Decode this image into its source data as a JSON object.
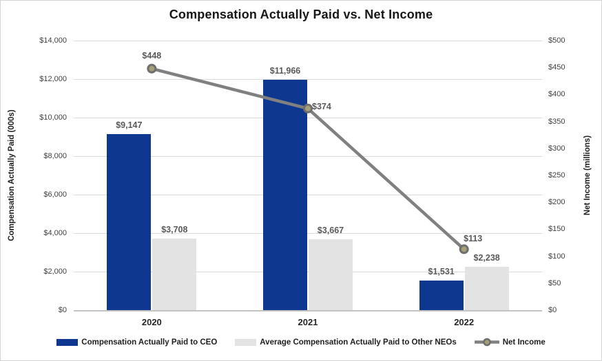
{
  "chart_data": {
    "type": "bar-line-combo",
    "title": "Compensation Actually Paid vs. Net Income",
    "categories": [
      "2020",
      "2021",
      "2022"
    ],
    "bar_series": [
      {
        "name": "Compensation Actually Paid to CEO",
        "color": "#0E3890",
        "values": [
          9147,
          11966,
          1531
        ],
        "labels": [
          "$9,147",
          "$11,966",
          "$1,531"
        ]
      },
      {
        "name": "Average Compensation Actually Paid to Other NEOs",
        "color": "#E3E3E3",
        "values": [
          3708,
          3667,
          2238
        ],
        "labels": [
          "$3,708",
          "$3,667",
          "$2,238"
        ]
      }
    ],
    "line_series": {
      "name": "Net Income",
      "color": "#808080",
      "marker_fill": "#A5A077",
      "marker_stroke": "#6E6E6E",
      "values": [
        448,
        374,
        113
      ],
      "labels": [
        "$448",
        "$374",
        "$113"
      ],
      "label_pos": [
        "above",
        "right",
        "above-right"
      ]
    },
    "axes": {
      "left": {
        "label": "Compensation Actually Paid (000s)",
        "min": 0,
        "max": 14000,
        "step": 2000,
        "ticks": [
          "$0",
          "$2,000",
          "$4,000",
          "$6,000",
          "$8,000",
          "$10,000",
          "$12,000",
          "$14,000"
        ]
      },
      "right": {
        "label": "Net Income (millions)",
        "min": 0,
        "max": 500,
        "step": 50,
        "ticks": [
          "$0",
          "$50",
          "$100",
          "$150",
          "$200",
          "$250",
          "$300",
          "$350",
          "$400",
          "$450",
          "$500"
        ]
      }
    },
    "grid": true,
    "legend_position": "bottom",
    "label_color": "#595959",
    "gridline_color": "#D9D9D9"
  }
}
